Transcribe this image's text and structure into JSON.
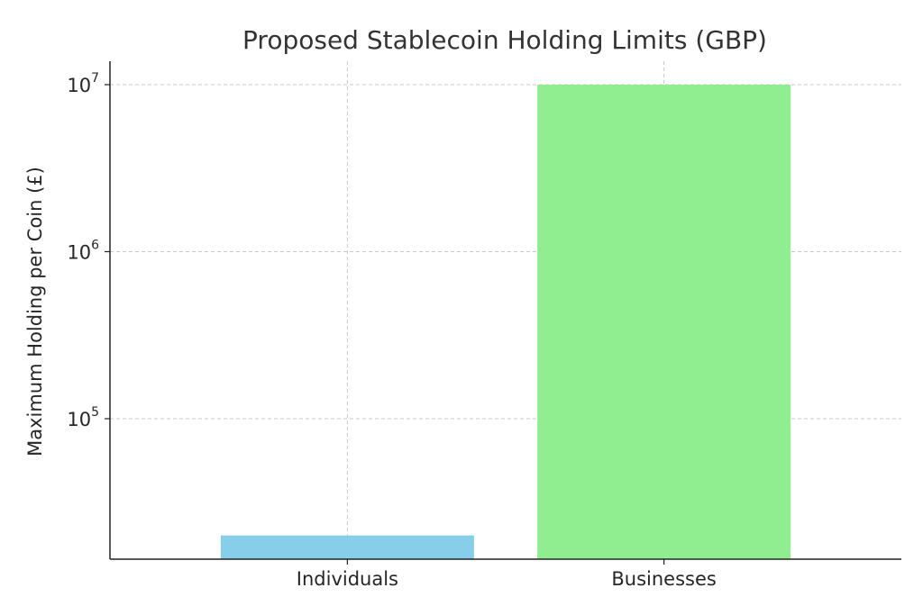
{
  "chart_data": {
    "type": "bar",
    "title": "Proposed Stablecoin Holding Limits (GBP)",
    "xlabel": "",
    "ylabel": "Maximum Holding per Coin (£)",
    "yscale": "log",
    "ylim": [
      13000,
      14000000
    ],
    "grid": true,
    "categories": [
      "Individuals",
      "Businesses"
    ],
    "values": [
      20000,
      10000000
    ],
    "colors": [
      "#87ceeb",
      "#90ee90"
    ],
    "y_ticks": [
      {
        "value": 100000,
        "base": "10",
        "exponent": "5"
      },
      {
        "value": 1000000,
        "base": "10",
        "exponent": "6"
      },
      {
        "value": 10000000,
        "base": "10",
        "exponent": "7"
      }
    ]
  }
}
